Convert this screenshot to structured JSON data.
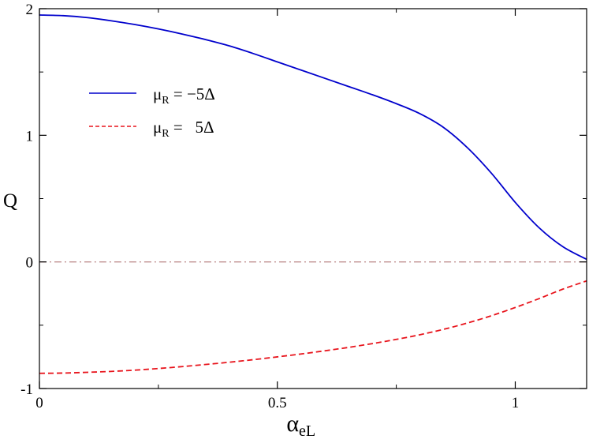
{
  "chart_data": {
    "type": "line",
    "title": "",
    "xlabel": {
      "base": "α",
      "sub": "eL"
    },
    "ylabel": "Q",
    "xlim": [
      0,
      1.15
    ],
    "ylim": [
      -1,
      2
    ],
    "xticks": [
      {
        "value": 0,
        "label": "0"
      },
      {
        "value": 0.5,
        "label": "0.5"
      },
      {
        "value": 1,
        "label": "1"
      }
    ],
    "xminor": [
      0.25,
      0.75
    ],
    "yticks": [
      {
        "value": -1,
        "label": "-1"
      },
      {
        "value": 0,
        "label": "0"
      },
      {
        "value": 1,
        "label": "1"
      },
      {
        "value": 2,
        "label": "2"
      }
    ],
    "yminor": [
      -0.5,
      0.5,
      1.5
    ],
    "grid": false,
    "legend": {
      "placement": "upper-left",
      "entries": [
        {
          "mu": "μ",
          "sub": "R",
          "rest": " = −5Δ"
        },
        {
          "mu": "μ",
          "sub": "R",
          "rest": " =   5Δ"
        }
      ]
    },
    "series": [
      {
        "color": "#0000cc",
        "dash": "solid",
        "x": [
          0,
          0.05,
          0.1,
          0.15,
          0.2,
          0.25,
          0.3,
          0.35,
          0.4,
          0.45,
          0.5,
          0.55,
          0.6,
          0.65,
          0.7,
          0.75,
          0.8,
          0.85,
          0.9,
          0.95,
          1.0,
          1.05,
          1.1,
          1.15
        ],
        "values": [
          1.95,
          1.945,
          1.93,
          1.905,
          1.875,
          1.84,
          1.8,
          1.755,
          1.705,
          1.645,
          1.58,
          1.515,
          1.45,
          1.385,
          1.32,
          1.25,
          1.17,
          1.06,
          0.9,
          0.7,
          0.47,
          0.27,
          0.12,
          0.02
        ]
      },
      {
        "color": "#e8141c",
        "dash": "dashed",
        "x": [
          0,
          0.05,
          0.1,
          0.15,
          0.2,
          0.25,
          0.3,
          0.35,
          0.4,
          0.45,
          0.5,
          0.55,
          0.6,
          0.65,
          0.7,
          0.75,
          0.8,
          0.85,
          0.9,
          0.95,
          1.0,
          1.05,
          1.1,
          1.15
        ],
        "values": [
          -0.88,
          -0.878,
          -0.872,
          -0.865,
          -0.855,
          -0.842,
          -0.827,
          -0.81,
          -0.792,
          -0.772,
          -0.75,
          -0.727,
          -0.702,
          -0.675,
          -0.645,
          -0.612,
          -0.575,
          -0.532,
          -0.482,
          -0.425,
          -0.36,
          -0.29,
          -0.215,
          -0.15
        ]
      },
      {
        "color": "#c09090",
        "dash": "dashdot",
        "x": [
          0,
          1.15
        ],
        "values": [
          0,
          0
        ]
      }
    ]
  }
}
